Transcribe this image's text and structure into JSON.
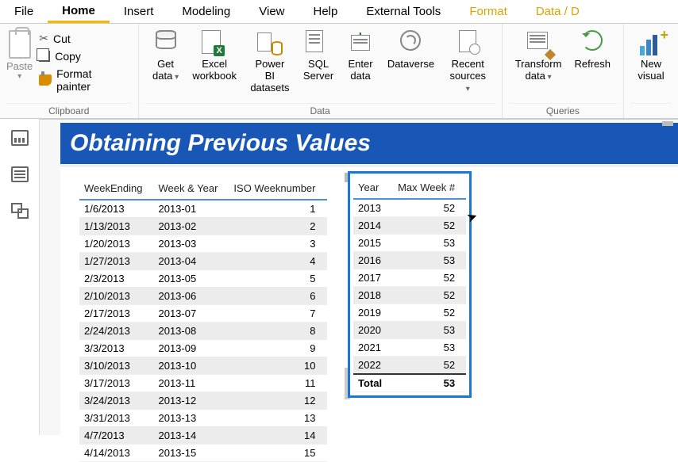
{
  "menu": {
    "file": "File",
    "home": "Home",
    "insert": "Insert",
    "modeling": "Modeling",
    "view": "View",
    "help": "Help",
    "external": "External Tools",
    "format": "Format",
    "datad": "Data / D"
  },
  "ribbon": {
    "clipboard": {
      "paste": "Paste",
      "cut": "Cut",
      "copy": "Copy",
      "formatpainter": "Format painter",
      "label": "Clipboard"
    },
    "data": {
      "getdata": "Get\ndata",
      "excel": "Excel\nworkbook",
      "pbi": "Power BI\ndatasets",
      "sql": "SQL\nServer",
      "enter": "Enter\ndata",
      "dataverse": "Dataverse",
      "recent": "Recent\nsources",
      "label": "Data"
    },
    "queries": {
      "transform": "Transform\ndata",
      "refresh": "Refresh",
      "label": "Queries"
    },
    "insert": {
      "newvisual": "New\nvisual"
    }
  },
  "title": "Obtaining Previous Values",
  "table1": {
    "headers": {
      "c1": "WeekEnding",
      "c2": "Week & Year",
      "c3": "ISO Weeknumber"
    },
    "rows": [
      [
        "1/6/2013",
        "2013-01",
        "1"
      ],
      [
        "1/13/2013",
        "2013-02",
        "2"
      ],
      [
        "1/20/2013",
        "2013-03",
        "3"
      ],
      [
        "1/27/2013",
        "2013-04",
        "4"
      ],
      [
        "2/3/2013",
        "2013-05",
        "5"
      ],
      [
        "2/10/2013",
        "2013-06",
        "6"
      ],
      [
        "2/17/2013",
        "2013-07",
        "7"
      ],
      [
        "2/24/2013",
        "2013-08",
        "8"
      ],
      [
        "3/3/2013",
        "2013-09",
        "9"
      ],
      [
        "3/10/2013",
        "2013-10",
        "10"
      ],
      [
        "3/17/2013",
        "2013-11",
        "11"
      ],
      [
        "3/24/2013",
        "2013-12",
        "12"
      ],
      [
        "3/31/2013",
        "2013-13",
        "13"
      ],
      [
        "4/7/2013",
        "2013-14",
        "14"
      ],
      [
        "4/14/2013",
        "2013-15",
        "15"
      ]
    ]
  },
  "table2": {
    "headers": {
      "c1": "Year",
      "c2": "Max Week #"
    },
    "rows": [
      [
        "2013",
        "52"
      ],
      [
        "2014",
        "52"
      ],
      [
        "2015",
        "53"
      ],
      [
        "2016",
        "53"
      ],
      [
        "2017",
        "52"
      ],
      [
        "2018",
        "52"
      ],
      [
        "2019",
        "52"
      ],
      [
        "2020",
        "53"
      ],
      [
        "2021",
        "53"
      ],
      [
        "2022",
        "52"
      ]
    ],
    "total": {
      "label": "Total",
      "value": "53"
    }
  }
}
